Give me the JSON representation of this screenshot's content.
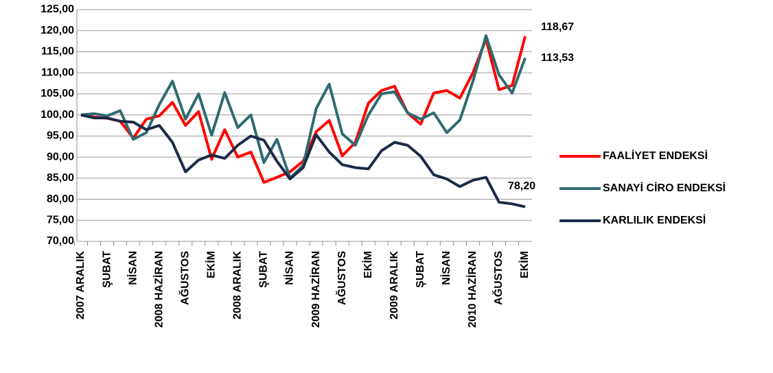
{
  "chart_data": {
    "type": "line",
    "categories": [
      "2007 ARALIK",
      null,
      "ŞUBAT",
      null,
      "NİSAN",
      null,
      "2008 HAZİRAN",
      null,
      "AĞUSTOS",
      null,
      "EKİM",
      null,
      "2008 ARALIK",
      null,
      "ŞUBAT",
      null,
      "NİSAN",
      null,
      "2009 HAZİRAN",
      null,
      "AĞUSTOS",
      null,
      "EKİM",
      null,
      "2009 ARALIK",
      null,
      "ŞUBAT",
      null,
      "NİSAN",
      null,
      "2010 HAZİRAN",
      null,
      "AĞUSTOS",
      null,
      "EKİM"
    ],
    "series": [
      {
        "name": "FAALİYET ENDEKSİ",
        "color": "#ff0000",
        "values": [
          100,
          99.5,
          99.2,
          98.5,
          94.5,
          99,
          99.8,
          103,
          97.5,
          100.8,
          89.5,
          96.5,
          90,
          91.2,
          84,
          85.2,
          86.5,
          89,
          96,
          98.7,
          90.3,
          93.5,
          102.8,
          105.8,
          106.8,
          100.5,
          97.8,
          105.2,
          105.8,
          104,
          110,
          118,
          106,
          107,
          118.67
        ],
        "value_labels": [
          null,
          null,
          null,
          null,
          null,
          null,
          null,
          null,
          null,
          null,
          null,
          null,
          null,
          null,
          null,
          null,
          null,
          null,
          null,
          null,
          null,
          null,
          null,
          null,
          null,
          null,
          null,
          null,
          null,
          null,
          null,
          null,
          null,
          null,
          "118,67"
        ]
      },
      {
        "name": "SANAYİ CİRO ENDEKSİ",
        "color": "#2f6b70",
        "values": [
          100,
          100.3,
          99.8,
          101,
          94.2,
          95.8,
          102.5,
          108,
          99,
          105,
          95.2,
          105.3,
          97,
          100,
          88.7,
          94.2,
          85,
          88,
          101.5,
          107.3,
          95.5,
          92.8,
          100,
          105,
          105.5,
          100.5,
          99,
          100.5,
          95.8,
          98.8,
          108,
          118.8,
          109.5,
          105.2,
          113.53
        ],
        "value_labels": [
          null,
          null,
          null,
          null,
          null,
          null,
          null,
          null,
          null,
          null,
          null,
          null,
          null,
          null,
          null,
          null,
          null,
          null,
          null,
          null,
          null,
          null,
          null,
          null,
          null,
          null,
          null,
          null,
          null,
          null,
          null,
          null,
          null,
          null,
          "113,53"
        ]
      },
      {
        "name": "KARLILIK ENDEKSİ",
        "color": "#1b2a45",
        "values": [
          100,
          99.3,
          99.3,
          98.5,
          98.3,
          96.5,
          97.5,
          93.5,
          86.5,
          89.3,
          90.5,
          89.7,
          92.8,
          95,
          94,
          89,
          84.8,
          87.5,
          95.3,
          91.2,
          88.2,
          87.5,
          87.2,
          91.5,
          93.5,
          92.8,
          90.2,
          85.8,
          84.8,
          83,
          84.5,
          85.2,
          79.3,
          78.9,
          78.2
        ],
        "value_labels": [
          null,
          null,
          null,
          null,
          null,
          null,
          null,
          null,
          null,
          null,
          null,
          null,
          null,
          null,
          null,
          null,
          null,
          null,
          null,
          null,
          null,
          null,
          null,
          null,
          null,
          null,
          null,
          null,
          null,
          null,
          null,
          null,
          null,
          null,
          "78,20"
        ]
      }
    ],
    "ylim": [
      70,
      125
    ],
    "yticks": [
      {
        "value": 70,
        "label": "70,00"
      },
      {
        "value": 75,
        "label": "75,00"
      },
      {
        "value": 80,
        "label": "80,00"
      },
      {
        "value": 85,
        "label": "85,00"
      },
      {
        "value": 90,
        "label": "90,00"
      },
      {
        "value": 95,
        "label": "95,00"
      },
      {
        "value": 100,
        "label": "100,00"
      },
      {
        "value": 105,
        "label": "105,00"
      },
      {
        "value": 110,
        "label": "110,00"
      },
      {
        "value": 115,
        "label": "115,00"
      },
      {
        "value": 120,
        "label": "120,00"
      },
      {
        "value": 125,
        "label": "125,00"
      }
    ],
    "grid": true,
    "legend": "right"
  }
}
